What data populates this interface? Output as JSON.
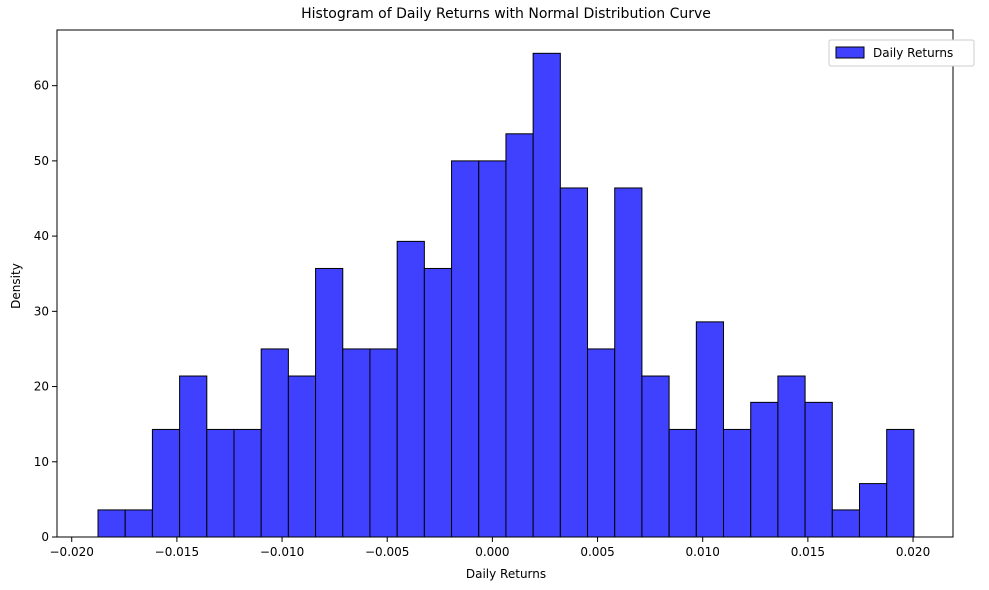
{
  "chart_data": {
    "type": "bar",
    "title": "Histogram of Daily Returns with Normal Distribution Curve",
    "xlabel": "Daily Returns",
    "ylabel": "Density",
    "xlim": [
      -0.0207,
      0.0219
    ],
    "ylim": [
      0,
      67.4
    ],
    "xticks": [
      -0.02,
      -0.015,
      -0.01,
      -0.005,
      0.0,
      0.005,
      0.01,
      0.015,
      0.02
    ],
    "xtick_labels": [
      "−0.020",
      "−0.015",
      "−0.010",
      "−0.005",
      "0.000",
      "0.005",
      "0.010",
      "0.015",
      "0.020"
    ],
    "yticks": [
      0,
      10,
      20,
      30,
      40,
      50,
      60
    ],
    "ytick_labels": [
      "0",
      "10",
      "20",
      "30",
      "40",
      "50",
      "60"
    ],
    "grid": false,
    "legend": {
      "position": "top-right",
      "entries": [
        {
          "name": "Daily Returns",
          "color": "#4040ff"
        }
      ]
    },
    "series": [
      {
        "name": "Daily Returns",
        "color": "#4040ff",
        "edge_color": "#000000",
        "bin_start": -0.01875,
        "bin_width": 0.001293,
        "values": [
          3.6,
          3.6,
          14.3,
          21.4,
          14.3,
          14.3,
          25.0,
          21.4,
          35.7,
          25.0,
          25.0,
          39.3,
          35.7,
          50.0,
          50.0,
          53.6,
          64.3,
          46.4,
          25.0,
          46.4,
          21.4,
          14.3,
          28.6,
          14.3,
          17.9,
          21.4,
          17.9,
          3.6,
          7.1,
          14.3
        ]
      }
    ]
  }
}
